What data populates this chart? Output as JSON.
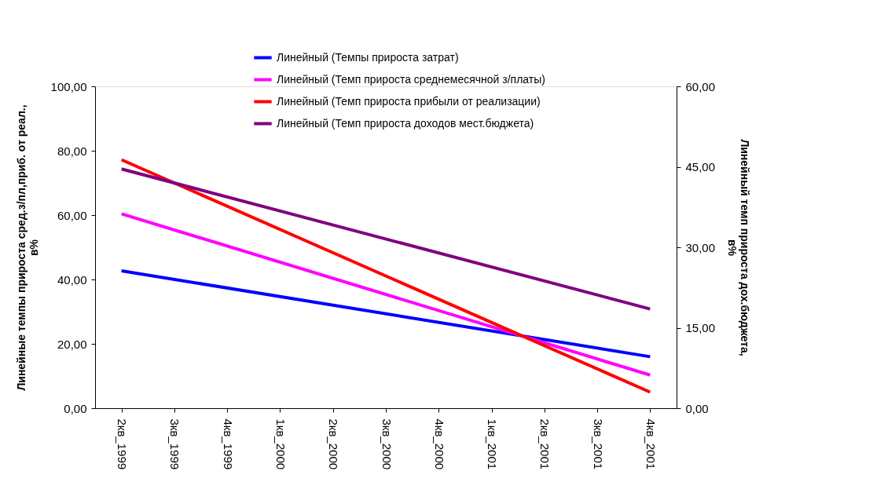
{
  "chart_data": {
    "type": "line",
    "categories": [
      "2кв_1999",
      "3кв_1999",
      "4кв_1999",
      "1кв_2000",
      "2кв_2000",
      "3кв_2000",
      "4кв_2000",
      "1кв_2001",
      "2кв_2001",
      "3кв_2001",
      "4кв_2001"
    ],
    "series": [
      {
        "name": "Линейный (Темпы прироста затрат)",
        "color": "#0000ff",
        "x": [
          "2кв_1999",
          "4кв_2001"
        ],
        "values": [
          42.7,
          16.0
        ]
      },
      {
        "name": "Линейный (Темп прироста среднемесячной з/платы)",
        "color": "#ff00ff",
        "x": [
          "2кв_1999",
          "4кв_2001"
        ],
        "values": [
          60.4,
          10.3
        ]
      },
      {
        "name": "Линейный (Темп прироста прибыли от реализации)",
        "color": "#ff0000",
        "x": [
          "2кв_1999",
          "4кв_2001"
        ],
        "values": [
          77.2,
          5.0
        ]
      },
      {
        "name": "Линейный (Темп прироста доходов мест.бюджета)",
        "color": "#800080",
        "x": [
          "2кв_1999",
          "4кв_2001"
        ],
        "values": [
          44.6,
          18.5
        ],
        "axis": "y2"
      }
    ],
    "ylabel": "Линейные темпы прироста сред.з/пл,приб. от реал., в%",
    "y2label": "Линейный темп прироста дох.бюджета, в%",
    "ylim": [
      0,
      100
    ],
    "yticks": [
      {
        "value": 0,
        "label": "0,00"
      },
      {
        "value": 20,
        "label": "20,00"
      },
      {
        "value": 40,
        "label": "40,00"
      },
      {
        "value": 60,
        "label": "60,00"
      },
      {
        "value": 80,
        "label": "80,00"
      },
      {
        "value": 100,
        "label": "100,00"
      }
    ],
    "y2lim": [
      0,
      60
    ],
    "y2ticks": [
      {
        "value": 0,
        "label": "0,00"
      },
      {
        "value": 15,
        "label": "15,00"
      },
      {
        "value": 30,
        "label": "30,00"
      },
      {
        "value": 45,
        "label": "45,00"
      },
      {
        "value": 60,
        "label": "60,00"
      }
    ],
    "grid": false,
    "legend": "top",
    "marker": "none",
    "line_style": "solid"
  }
}
